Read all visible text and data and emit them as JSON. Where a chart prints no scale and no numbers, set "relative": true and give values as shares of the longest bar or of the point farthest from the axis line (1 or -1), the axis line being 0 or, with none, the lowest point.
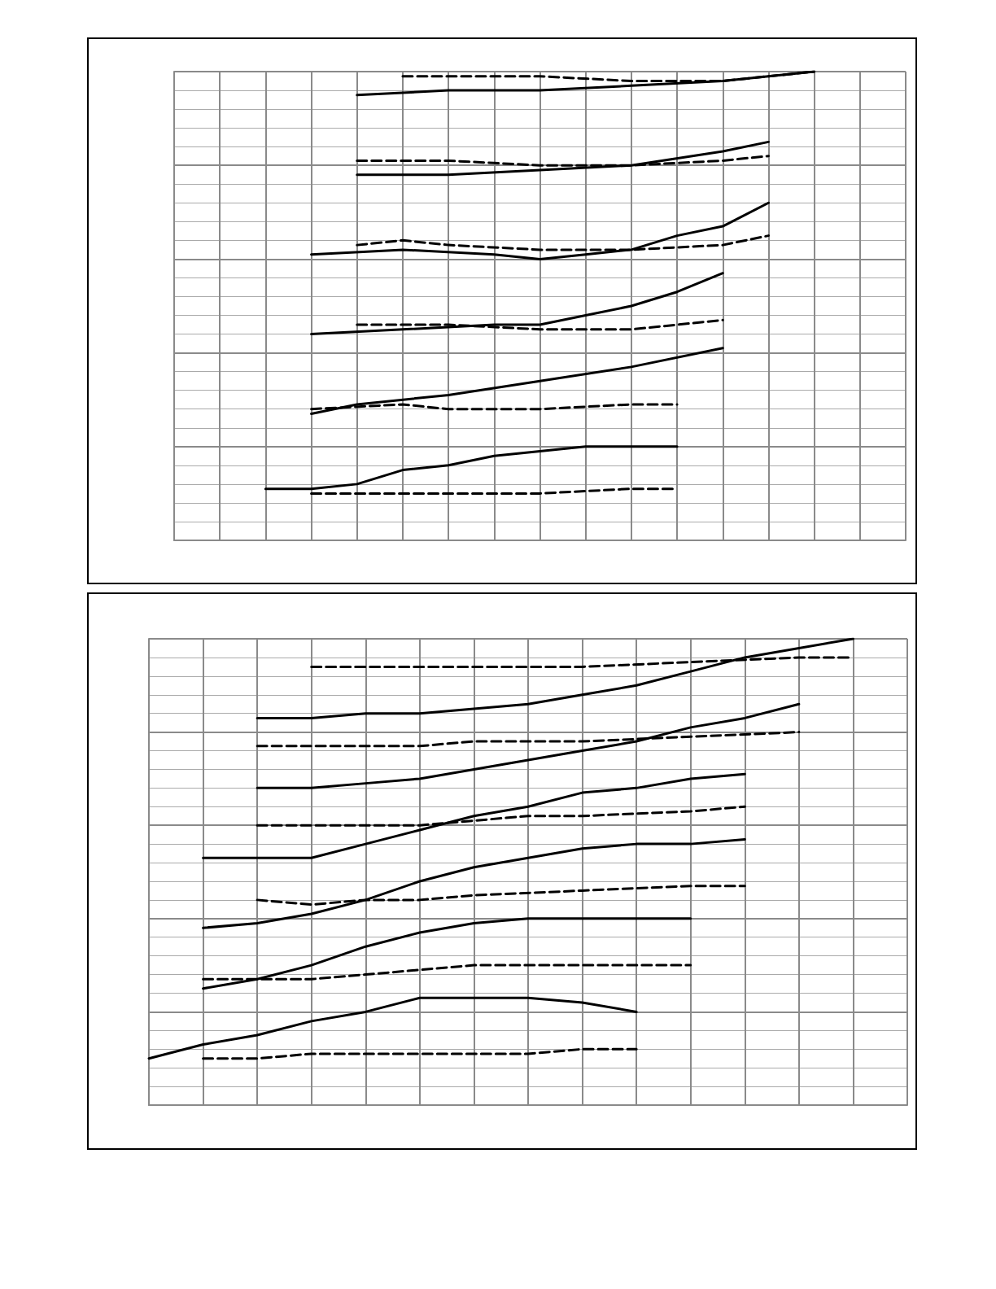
{
  "chart_data": [
    {
      "type": "line",
      "relative": true,
      "grid": true,
      "marker": "none",
      "categories": [
        null,
        null,
        null,
        null,
        null,
        null,
        null,
        null,
        null,
        null,
        null,
        null,
        null,
        null,
        null,
        null,
        null
      ],
      "series": [
        {
          "color": "#000000",
          "line_style": "solid",
          "values": [
            null,
            null,
            null,
            null,
            0.95,
            null,
            0.96,
            null,
            0.96,
            null,
            0.97,
            null,
            0.98,
            null,
            1.0,
            null,
            null
          ]
        },
        {
          "color": "#000000",
          "line_style": "dashed",
          "values": [
            null,
            null,
            null,
            null,
            null,
            0.99,
            0.99,
            null,
            0.99,
            null,
            0.98,
            null,
            0.98,
            null,
            1.0,
            null,
            null
          ]
        },
        {
          "color": "#000000",
          "line_style": "solid",
          "values": [
            null,
            null,
            null,
            null,
            0.78,
            null,
            0.78,
            null,
            0.79,
            null,
            0.8,
            null,
            0.83,
            0.85,
            null,
            null,
            null
          ]
        },
        {
          "color": "#000000",
          "line_style": "dashed",
          "values": [
            null,
            null,
            null,
            null,
            0.81,
            null,
            0.81,
            null,
            0.8,
            null,
            0.8,
            null,
            0.81,
            0.82,
            null,
            null,
            null
          ]
        },
        {
          "color": "#000000",
          "line_style": "solid",
          "values": [
            null,
            null,
            null,
            0.61,
            null,
            0.62,
            null,
            0.61,
            0.6,
            0.61,
            0.62,
            0.65,
            0.67,
            0.72,
            null,
            null,
            null
          ]
        },
        {
          "color": "#000000",
          "line_style": "dashed",
          "values": [
            null,
            null,
            null,
            null,
            0.63,
            0.64,
            0.63,
            null,
            0.62,
            null,
            0.62,
            null,
            0.63,
            0.65,
            null,
            null,
            null
          ]
        },
        {
          "color": "#000000",
          "line_style": "solid",
          "values": [
            null,
            null,
            null,
            0.44,
            null,
            0.45,
            null,
            0.46,
            0.46,
            0.48,
            0.5,
            0.53,
            0.57,
            null,
            null,
            null,
            null
          ]
        },
        {
          "color": "#000000",
          "line_style": "dashed",
          "values": [
            null,
            null,
            null,
            null,
            0.46,
            0.46,
            0.46,
            null,
            0.45,
            null,
            0.45,
            null,
            0.47,
            null,
            null,
            null,
            null
          ]
        },
        {
          "color": "#000000",
          "line_style": "solid",
          "values": [
            null,
            null,
            null,
            0.27,
            0.29,
            null,
            0.31,
            null,
            0.34,
            null,
            0.37,
            null,
            0.41,
            null,
            null,
            null,
            null
          ]
        },
        {
          "color": "#000000",
          "line_style": "dashed",
          "values": [
            null,
            null,
            null,
            0.28,
            null,
            0.29,
            0.28,
            null,
            0.28,
            null,
            0.29,
            0.29,
            null,
            null,
            null,
            null,
            null
          ]
        },
        {
          "color": "#000000",
          "line_style": "solid",
          "values": [
            null,
            null,
            0.11,
            0.11,
            0.12,
            0.15,
            0.16,
            0.18,
            0.19,
            0.2,
            0.2,
            0.2,
            null,
            null,
            null,
            null,
            null
          ]
        },
        {
          "color": "#000000",
          "line_style": "dashed",
          "values": [
            null,
            null,
            null,
            0.1,
            0.1,
            0.1,
            0.1,
            null,
            0.1,
            null,
            0.11,
            0.11,
            null,
            null,
            null,
            null,
            null
          ]
        }
      ]
    },
    {
      "type": "line",
      "relative": true,
      "grid": true,
      "marker": "none",
      "categories": [
        null,
        null,
        null,
        null,
        null,
        null,
        null,
        null,
        null,
        null,
        null,
        null,
        null,
        null,
        null
      ],
      "series": [
        {
          "color": "#000000",
          "line_style": "solid",
          "values": [
            null,
            null,
            0.83,
            0.83,
            0.84,
            0.84,
            0.85,
            0.86,
            0.88,
            0.9,
            0.93,
            0.96,
            0.98,
            1.0,
            null
          ]
        },
        {
          "color": "#000000",
          "line_style": "dashed",
          "values": [
            null,
            null,
            null,
            0.94,
            0.94,
            0.94,
            0.94,
            null,
            0.94,
            null,
            0.95,
            null,
            0.96,
            0.96,
            null
          ]
        },
        {
          "color": "#000000",
          "line_style": "solid",
          "values": [
            null,
            null,
            0.68,
            0.68,
            0.69,
            0.7,
            0.72,
            0.74,
            0.76,
            0.78,
            0.81,
            0.83,
            0.86,
            null,
            null
          ]
        },
        {
          "color": "#000000",
          "line_style": "dashed",
          "values": [
            null,
            null,
            0.77,
            0.77,
            0.77,
            0.77,
            0.78,
            null,
            0.78,
            null,
            0.79,
            null,
            0.8,
            null,
            null
          ]
        },
        {
          "color": "#000000",
          "line_style": "solid",
          "values": [
            null,
            0.53,
            0.53,
            0.53,
            0.56,
            0.59,
            0.62,
            0.64,
            0.67,
            0.68,
            0.7,
            0.71,
            null,
            null,
            null
          ]
        },
        {
          "color": "#000000",
          "line_style": "dashed",
          "values": [
            null,
            null,
            0.6,
            0.6,
            0.6,
            0.6,
            0.61,
            0.62,
            0.62,
            null,
            0.63,
            0.64,
            null,
            null,
            null
          ]
        },
        {
          "color": "#000000",
          "line_style": "solid",
          "values": [
            null,
            0.38,
            0.39,
            0.41,
            0.44,
            0.48,
            0.51,
            0.53,
            0.55,
            0.56,
            0.56,
            0.57,
            null,
            null,
            null
          ]
        },
        {
          "color": "#000000",
          "line_style": "dashed",
          "values": [
            null,
            null,
            0.44,
            0.43,
            0.44,
            0.44,
            0.45,
            null,
            0.46,
            null,
            0.47,
            0.47,
            null,
            null,
            null
          ]
        },
        {
          "color": "#000000",
          "line_style": "solid",
          "values": [
            null,
            0.25,
            0.27,
            0.3,
            0.34,
            0.37,
            0.39,
            0.4,
            0.4,
            0.4,
            0.4,
            null,
            null,
            null,
            null
          ]
        },
        {
          "color": "#000000",
          "line_style": "dashed",
          "values": [
            null,
            0.27,
            0.27,
            0.27,
            0.28,
            0.29,
            0.3,
            0.3,
            0.3,
            0.3,
            0.3,
            null,
            null,
            null,
            null
          ]
        },
        {
          "color": "#000000",
          "line_style": "solid",
          "values": [
            0.1,
            0.13,
            0.15,
            0.18,
            0.2,
            0.23,
            0.23,
            0.23,
            0.22,
            0.2,
            null,
            null,
            null,
            null,
            null
          ]
        },
        {
          "color": "#000000",
          "line_style": "dashed",
          "values": [
            null,
            0.1,
            0.1,
            0.11,
            0.11,
            0.11,
            0.11,
            0.11,
            0.12,
            0.12,
            null,
            null,
            null,
            null,
            null
          ]
        }
      ]
    }
  ]
}
